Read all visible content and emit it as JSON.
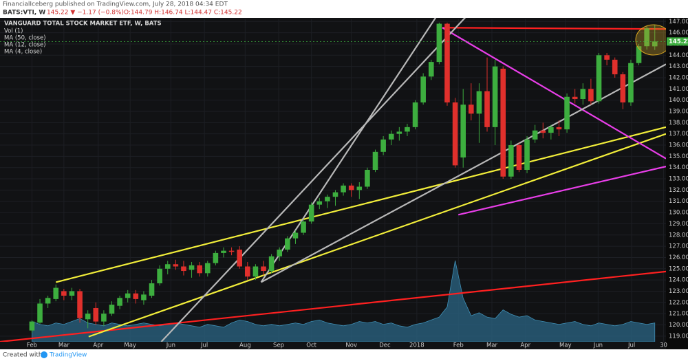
{
  "header": {
    "publisher_line": "FinancialIceberg published on TradingView.com, July 28, 2018 04:34 EDT",
    "symbol": "BATS:VTI, W",
    "quote": "145.22 ▼ −1.17 (−0.8%)",
    "ohlc": "O:144.79 H:146.74 L:144.47 C:145.22"
  },
  "footer": {
    "created_with": "Created with",
    "brand": "TradingView"
  },
  "chart_data": {
    "type": "candlestick",
    "title": "VANGUARD TOTAL STOCK MARKET ETF, W, BATS",
    "indicators": [
      "MA (50, close)",
      "MA (12, close)",
      "MA (4, close)"
    ],
    "categories": [
      null,
      null,
      null,
      null,
      null,
      null,
      null,
      null,
      null,
      null,
      null,
      null,
      null,
      null,
      null,
      null,
      null,
      null,
      null,
      null,
      null,
      null,
      null,
      null,
      null,
      null,
      null,
      null,
      null,
      null,
      null,
      null,
      null,
      null,
      null,
      null,
      null,
      null,
      null,
      null,
      null,
      null,
      null,
      null,
      null,
      null,
      null,
      null,
      null,
      null,
      null,
      null,
      null,
      null,
      null,
      null,
      null,
      null,
      null,
      null,
      null,
      null,
      null,
      null,
      null,
      null,
      null,
      null,
      null,
      null,
      null,
      null,
      null,
      null,
      null,
      null,
      null,
      null,
      null
    ],
    "open": [
      119.5,
      120.2,
      121.9,
      122.3,
      123.0,
      122.6,
      123.0,
      120.5,
      121.5,
      120.3,
      121.0,
      121.7,
      122.4,
      122.8,
      122.2,
      122.6,
      123.7,
      125.0,
      125.4,
      125.2,
      124.9,
      125.3,
      124.6,
      125.5,
      126.4,
      126.6,
      126.7,
      125.2,
      124.3,
      125.2,
      124.8,
      126.1,
      126.7,
      127.7,
      128.2,
      129.2,
      130.7,
      131.0,
      131.4,
      131.8,
      132.4,
      132.0,
      132.3,
      133.8,
      135.4,
      136.5,
      137.0,
      137.2,
      137.6,
      139.8,
      142.1,
      143.4,
      146.8,
      139.8,
      134.9,
      139.6,
      138.8,
      140.8,
      137.6,
      142.8,
      133.2,
      136.0,
      133.8,
      136.5,
      137.3,
      137.1,
      137.6,
      137.4,
      140.3,
      140.1,
      141.0,
      139.9,
      144.0,
      143.6,
      142.3,
      139.8,
      143.3,
      144.8,
      144.79
    ],
    "high": [
      120.4,
      122.3,
      122.6,
      123.6,
      123.2,
      123.3,
      123.2,
      121.3,
      122.0,
      121.3,
      122.1,
      122.6,
      123.1,
      123.1,
      123.0,
      124.0,
      125.3,
      125.7,
      125.8,
      125.7,
      125.6,
      125.6,
      125.7,
      126.6,
      126.9,
      126.9,
      127.0,
      125.6,
      125.4,
      125.7,
      126.3,
      126.9,
      127.9,
      128.4,
      129.4,
      130.9,
      131.3,
      131.6,
      132.0,
      132.6,
      132.6,
      132.7,
      134.0,
      135.6,
      136.8,
      137.3,
      137.6,
      137.9,
      140.0,
      142.4,
      143.6,
      146.9,
      146.9,
      140.2,
      141.0,
      141.5,
      141.5,
      143.8,
      143.6,
      143.0,
      136.4,
      136.2,
      136.8,
      137.8,
      138.0,
      137.8,
      138.2,
      140.6,
      141.0,
      141.5,
      141.9,
      144.2,
      144.2,
      143.8,
      142.5,
      143.6,
      145.0,
      146.6,
      146.74
    ],
    "low": [
      119.3,
      120.1,
      121.5,
      122.1,
      122.2,
      122.2,
      120.2,
      119.7,
      120.0,
      119.9,
      120.8,
      121.4,
      122.0,
      121.9,
      121.8,
      122.4,
      123.5,
      124.5,
      124.9,
      124.4,
      124.2,
      124.3,
      124.3,
      125.3,
      126.0,
      126.2,
      125.0,
      124.0,
      124.0,
      124.4,
      124.6,
      125.7,
      126.5,
      127.2,
      128.0,
      129.0,
      130.3,
      130.4,
      130.6,
      131.5,
      131.4,
      131.2,
      132.1,
      133.6,
      135.1,
      136.0,
      136.4,
      136.8,
      137.4,
      139.6,
      141.8,
      143.2,
      139.5,
      134.0,
      134.0,
      138.2,
      136.2,
      137.2,
      136.0,
      133.0,
      133.0,
      133.6,
      133.5,
      136.2,
      136.6,
      136.5,
      136.8,
      137.1,
      139.7,
      139.6,
      139.6,
      139.7,
      143.1,
      142.0,
      139.2,
      139.5,
      143.1,
      144.5,
      144.47
    ],
    "close": [
      120.3,
      121.9,
      122.4,
      123.3,
      122.6,
      123.0,
      120.6,
      121.0,
      120.3,
      121.0,
      121.8,
      122.4,
      122.8,
      122.3,
      122.7,
      123.7,
      125.0,
      125.4,
      125.2,
      124.8,
      125.3,
      124.6,
      125.5,
      126.4,
      126.6,
      126.5,
      125.2,
      124.3,
      125.2,
      124.8,
      126.1,
      126.7,
      127.7,
      128.2,
      129.2,
      130.7,
      131.0,
      131.4,
      131.8,
      132.4,
      132.0,
      132.3,
      133.8,
      135.4,
      136.5,
      137.0,
      137.2,
      137.6,
      139.8,
      142.1,
      143.4,
      146.8,
      139.8,
      134.2,
      139.6,
      138.8,
      140.8,
      137.6,
      143.0,
      133.2,
      136.0,
      133.8,
      136.5,
      137.3,
      137.1,
      137.6,
      137.4,
      140.3,
      140.1,
      141.0,
      139.9,
      144.0,
      143.6,
      142.3,
      139.8,
      143.3,
      144.8,
      146.39,
      145.22
    ],
    "up_color": "#3dae3f",
    "down_color": "#e0302c",
    "volume": {
      "name": "Vol (1)",
      "color": "#2b6684",
      "values": [
        14,
        12,
        11,
        13,
        12,
        14,
        16,
        13,
        12,
        11,
        13,
        12,
        11,
        12,
        13,
        12,
        11,
        12,
        13,
        12,
        11,
        10,
        12,
        11,
        10,
        13,
        15,
        14,
        12,
        11,
        12,
        11,
        12,
        13,
        12,
        14,
        15,
        13,
        12,
        11,
        12,
        14,
        13,
        14,
        12,
        13,
        11,
        10,
        12,
        13,
        15,
        17,
        24,
        56,
        30,
        18,
        20,
        17,
        16,
        22,
        19,
        17,
        18,
        15,
        14,
        13,
        12,
        13,
        14,
        12,
        11,
        13,
        12,
        11,
        12,
        14,
        13,
        12,
        13
      ]
    },
    "trendlines": [
      {
        "color": "#ff2020",
        "x": [
          51.4,
          79.4
        ],
        "y": [
          146.45,
          146.33
        ]
      },
      {
        "color": "#ff2020",
        "x": [
          -4,
          79.4
        ],
        "y": [
          118.5,
          124.75
        ]
      },
      {
        "color": "#f2ee3a",
        "x": [
          3,
          79.4
        ],
        "y": [
          123.8,
          137.6
        ]
      },
      {
        "color": "#f2ee3a",
        "x": [
          7.1,
          79.4
        ],
        "y": [
          118.95,
          137.0
        ]
      },
      {
        "color": "#e83ee8",
        "x": [
          51.4,
          79.4
        ],
        "y": [
          146.45,
          134.8
        ]
      },
      {
        "color": "#e83ee8",
        "x": [
          53.4,
          79.4
        ],
        "y": [
          129.8,
          134.1
        ]
      },
      {
        "color": "#b8b8b8",
        "x": [
          16.2,
          56.3
        ],
        "y": [
          118.5,
          148.9
        ]
      },
      {
        "color": "#b8b8b8",
        "x": [
          28.7,
          52.0
        ],
        "y": [
          123.8,
          148.9
        ]
      },
      {
        "color": "#b8b8b8",
        "x": [
          28.7,
          79.4
        ],
        "y": [
          123.8,
          143.2
        ]
      }
    ],
    "last_price": 145.22,
    "xlim": [
      -4,
      79.4
    ],
    "ylim": [
      118.5,
      147.2
    ],
    "xticks": [
      {
        "value": 0,
        "label": "Feb"
      },
      {
        "value": 4,
        "label": "Mar"
      },
      {
        "value": 8.3,
        "label": "Apr"
      },
      {
        "value": 12.3,
        "label": "May"
      },
      {
        "value": 17.4,
        "label": "Jun"
      },
      {
        "value": 21.6,
        "label": "Jul"
      },
      {
        "value": 26.7,
        "label": "Aug"
      },
      {
        "value": 30.9,
        "label": "Sep"
      },
      {
        "value": 35,
        "label": "Oct"
      },
      {
        "value": 40,
        "label": "Nov"
      },
      {
        "value": 44.2,
        "label": "Dec"
      },
      {
        "value": 48.2,
        "label": "2018"
      },
      {
        "value": 53.4,
        "label": "Feb"
      },
      {
        "value": 57.6,
        "label": "Mar"
      },
      {
        "value": 61.8,
        "label": "Apr"
      },
      {
        "value": 66.8,
        "label": "May"
      },
      {
        "value": 70.9,
        "label": "Jun"
      },
      {
        "value": 75.1,
        "label": "Jul"
      },
      {
        "value": 79.1,
        "label": "30"
      }
    ],
    "yticks": [
      {
        "value": 119,
        "label": "119.00"
      },
      {
        "value": 120,
        "label": "120.00"
      },
      {
        "value": 121,
        "label": "121.00"
      },
      {
        "value": 122,
        "label": "122.00"
      },
      {
        "value": 123,
        "label": "123.00"
      },
      {
        "value": 124,
        "label": "124.00"
      },
      {
        "value": 125,
        "label": "125.00"
      },
      {
        "value": 126,
        "label": "126.00"
      },
      {
        "value": 127,
        "label": "127.00"
      },
      {
        "value": 128,
        "label": "128.00"
      },
      {
        "value": 129,
        "label": "129.00"
      },
      {
        "value": 130,
        "label": "130.00"
      },
      {
        "value": 131,
        "label": "131.00"
      },
      {
        "value": 132,
        "label": "132.00"
      },
      {
        "value": 133,
        "label": "133.00"
      },
      {
        "value": 134,
        "label": "134.00"
      },
      {
        "value": 135,
        "label": "135.00"
      },
      {
        "value": 136,
        "label": "136.00"
      },
      {
        "value": 137,
        "label": "137.00"
      },
      {
        "value": 138,
        "label": "138.00"
      },
      {
        "value": 139,
        "label": "139.00"
      },
      {
        "value": 140,
        "label": "140.00"
      },
      {
        "value": 141,
        "label": "141.00"
      },
      {
        "value": 142,
        "label": "142.00"
      },
      {
        "value": 143,
        "label": "143.00"
      },
      {
        "value": 144,
        "label": "144.00"
      },
      {
        "value": 145,
        "label": "145.00"
      },
      {
        "value": 146,
        "label": "146.00"
      },
      {
        "value": 147,
        "label": "147.00"
      }
    ],
    "grid": true
  }
}
